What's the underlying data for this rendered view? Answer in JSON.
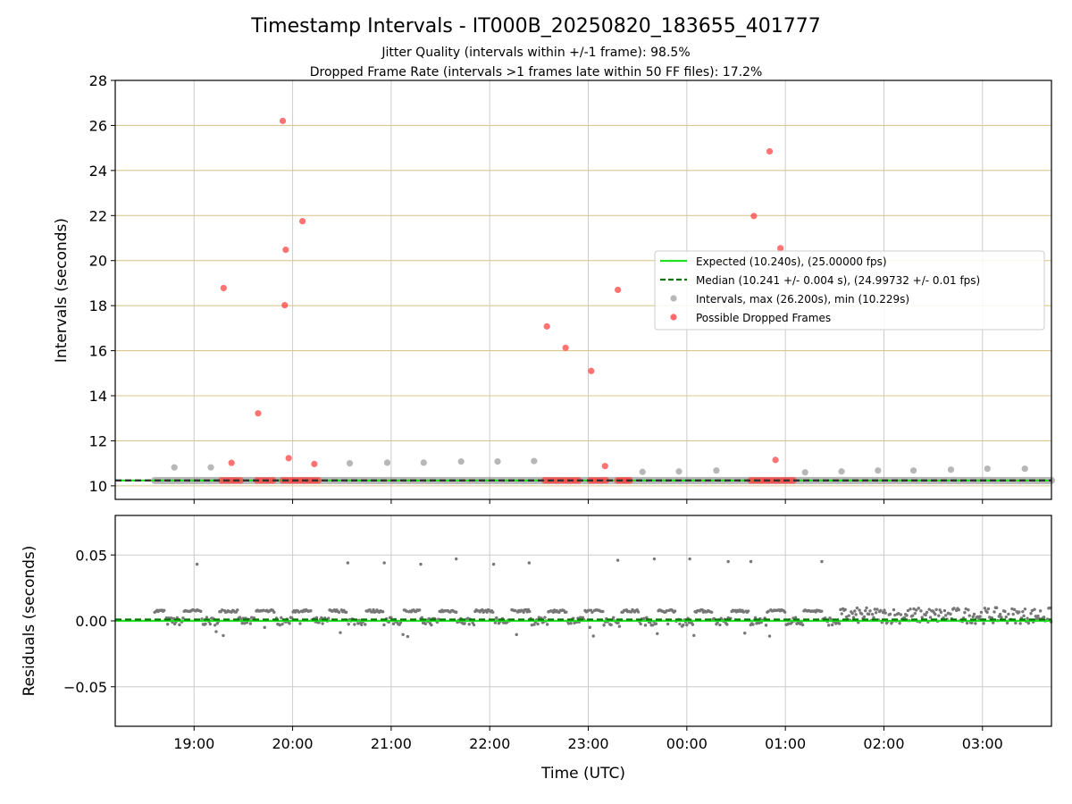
{
  "chart_data": {
    "title": "Timestamp Intervals - IT000B_20250820_183655_401777",
    "subtitle_lines": [
      "Jitter Quality (intervals within +/-1 frame): 98.5%",
      "Dropped Frame Rate (intervals >1 frames late within 50 FF files): 17.2%"
    ],
    "xlabel": "Time (UTC)",
    "x_range_hours": [
      18.2,
      27.7
    ],
    "x_ticks": [
      {
        "label": "19:00",
        "hour": 19
      },
      {
        "label": "20:00",
        "hour": 20
      },
      {
        "label": "21:00",
        "hour": 21
      },
      {
        "label": "22:00",
        "hour": 22
      },
      {
        "label": "23:00",
        "hour": 23
      },
      {
        "label": "00:00",
        "hour": 24
      },
      {
        "label": "01:00",
        "hour": 25
      },
      {
        "label": "02:00",
        "hour": 26
      },
      {
        "label": "03:00",
        "hour": 27
      }
    ],
    "top": {
      "type": "scatter",
      "ylabel": "Intervals (seconds)",
      "ylim": [
        9.4,
        28
      ],
      "yticks": [
        "10",
        "12",
        "14",
        "16",
        "18",
        "20",
        "22",
        "24",
        "26",
        "28"
      ],
      "grid": "horizontal-tan",
      "legend_position": "right",
      "legend": [
        {
          "label": "Expected (10.240s), (25.00000 fps)",
          "kind": "solid-line",
          "color": "#22e022"
        },
        {
          "label": "Median (10.241 +/- 0.004 s), (24.99732 +/- 0.01 fps)",
          "kind": "dashed-line",
          "color": "#007700"
        },
        {
          "label": "Intervals, max (26.200s), min (10.229s)",
          "kind": "marker",
          "color": "#999999"
        },
        {
          "label": "Possible Dropped Frames",
          "kind": "marker",
          "color": "#ff4444"
        }
      ],
      "expected": 10.24,
      "median": 10.241,
      "intervals_band": {
        "x_start": 18.6,
        "x_end": 27.7,
        "value": 10.24
      },
      "interval_outliers": [
        [
          18.8,
          10.82
        ],
        [
          19.17,
          10.82
        ],
        [
          20.58,
          11.0
        ],
        [
          20.96,
          11.03
        ],
        [
          21.33,
          11.03
        ],
        [
          21.71,
          11.08
        ],
        [
          22.08,
          11.08
        ],
        [
          22.45,
          11.1
        ],
        [
          23.55,
          10.62
        ],
        [
          23.92,
          10.64
        ],
        [
          24.3,
          10.68
        ],
        [
          25.2,
          10.6
        ],
        [
          25.57,
          10.64
        ],
        [
          25.94,
          10.68
        ],
        [
          26.3,
          10.68
        ],
        [
          26.68,
          10.72
        ],
        [
          27.05,
          10.76
        ],
        [
          27.43,
          10.76
        ]
      ],
      "dropped_frames": [
        [
          19.3,
          18.78
        ],
        [
          19.38,
          11.02
        ],
        [
          19.65,
          13.22
        ],
        [
          19.9,
          26.2
        ],
        [
          19.92,
          18.02
        ],
        [
          19.93,
          20.48
        ],
        [
          19.96,
          11.23
        ],
        [
          20.1,
          21.75
        ],
        [
          20.22,
          10.97
        ],
        [
          22.58,
          17.08
        ],
        [
          22.77,
          16.13
        ],
        [
          23.03,
          15.1
        ],
        [
          23.17,
          10.88
        ],
        [
          23.3,
          18.7
        ],
        [
          24.68,
          21.98
        ],
        [
          24.84,
          24.85
        ],
        [
          24.9,
          11.15
        ],
        [
          24.95,
          20.55
        ]
      ],
      "dropped_clusters": [
        {
          "x_start": 19.28,
          "x_end": 19.47
        },
        {
          "x_start": 19.64,
          "x_end": 19.8
        },
        {
          "x_start": 19.9,
          "x_end": 20.26
        },
        {
          "x_start": 22.56,
          "x_end": 22.9
        },
        {
          "x_start": 23.02,
          "x_end": 23.18
        },
        {
          "x_start": 23.3,
          "x_end": 23.42
        },
        {
          "x_start": 24.65,
          "x_end": 25.08
        }
      ]
    },
    "bottom": {
      "type": "scatter",
      "ylabel": "Residuals (seconds)",
      "ylim": [
        -0.08,
        0.08
      ],
      "yticks": [
        "0.05",
        "0.00",
        "−0.05"
      ],
      "ytick_values": [
        0.05,
        0.0,
        -0.05
      ],
      "grid": "both-gray",
      "expected_line": 0.0,
      "median_line": 0.001,
      "outliers": [
        [
          19.03,
          0.043
        ],
        [
          20.56,
          0.044
        ],
        [
          20.93,
          0.044
        ],
        [
          21.3,
          0.043
        ],
        [
          21.66,
          0.047
        ],
        [
          22.04,
          0.043
        ],
        [
          22.4,
          0.044
        ],
        [
          23.3,
          0.046
        ],
        [
          23.67,
          0.047
        ],
        [
          24.03,
          0.047
        ],
        [
          24.42,
          0.045
        ],
        [
          24.65,
          0.045
        ],
        [
          25.37,
          0.045
        ]
      ],
      "band_start": 18.6,
      "band_end": 27.7,
      "dense_from": 25.55
    },
    "colors": {
      "expected": "#22e022",
      "median": "#007700",
      "interval_marker": "#999999",
      "dropped_marker": "#ff4444",
      "residual_marker": "#777777",
      "hgrid_top": "#d8c890",
      "grid": "#cccccc"
    }
  }
}
